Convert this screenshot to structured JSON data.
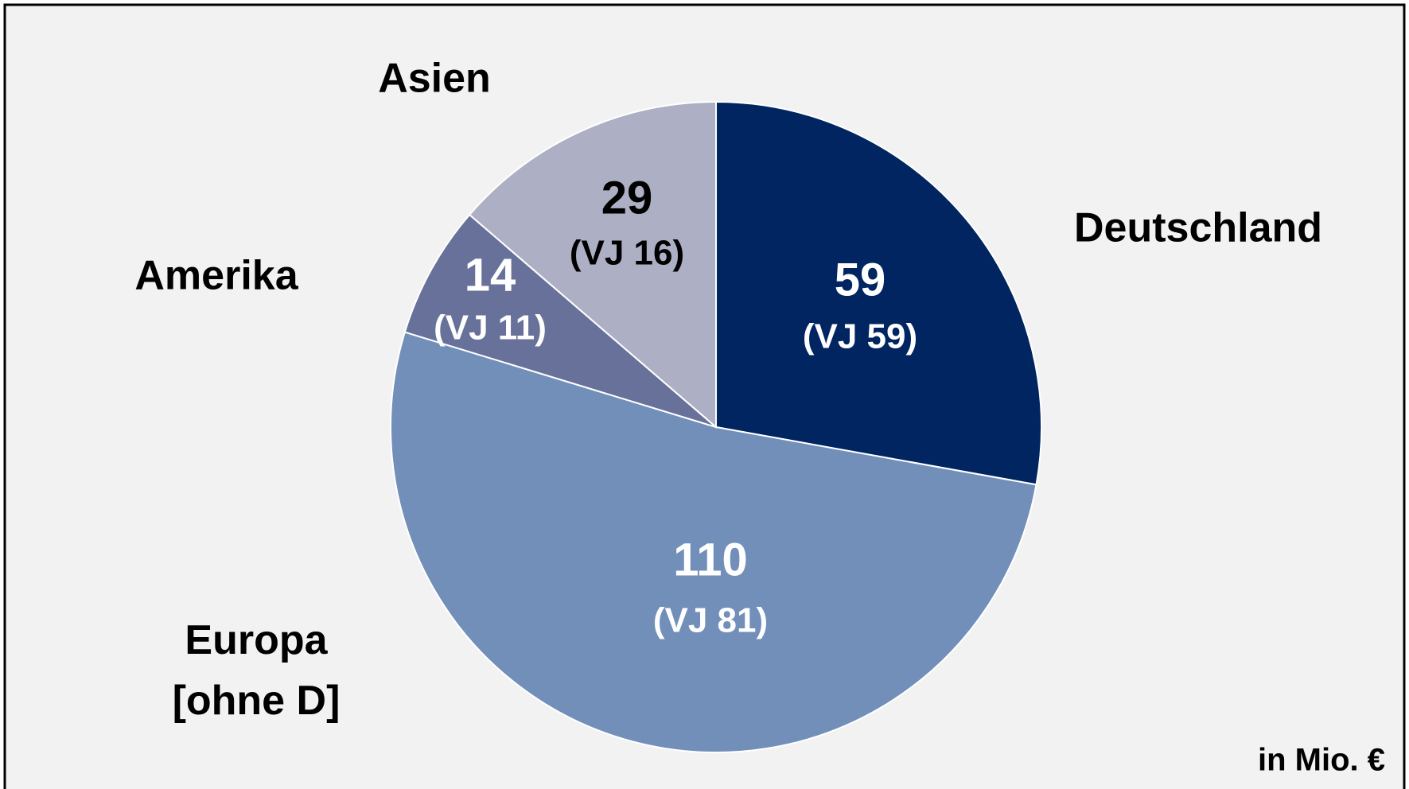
{
  "chart_data": {
    "type": "pie",
    "categories": [
      "Deutschland",
      "Europa\n[ohne D]",
      "Amerika",
      "Asien"
    ],
    "values": [
      59,
      110,
      14,
      29
    ],
    "sublabels": [
      "(VJ 59)",
      "(VJ 81)",
      "(VJ 11)",
      "(VJ 16)"
    ],
    "colors": [
      "#002561",
      "#728fba",
      "#68719a",
      "#adb0c4"
    ],
    "label_colors": [
      "#ffffff",
      "#ffffff",
      "#ffffff",
      "#000000"
    ],
    "unit_note": "in Mio. €"
  }
}
